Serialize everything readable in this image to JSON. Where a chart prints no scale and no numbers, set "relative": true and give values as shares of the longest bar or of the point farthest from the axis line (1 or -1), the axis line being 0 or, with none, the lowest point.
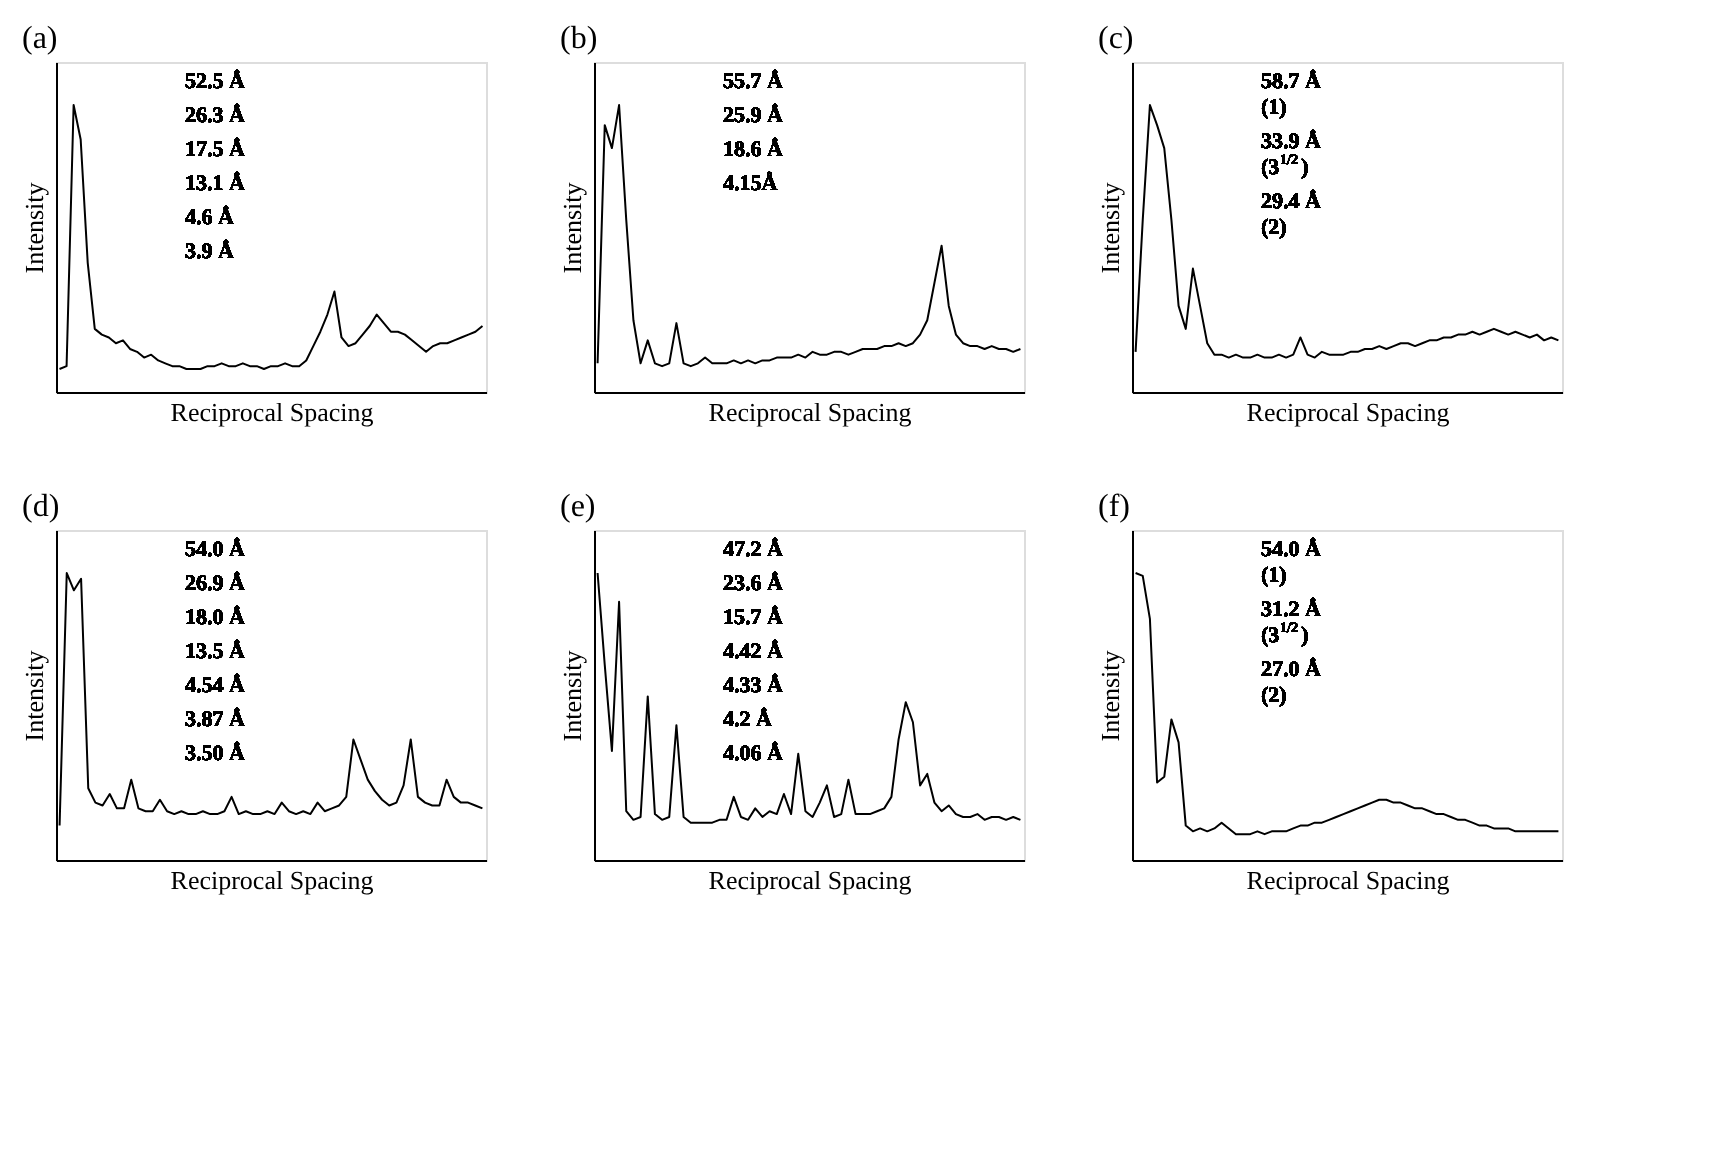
{
  "chart_data": [
    {
      "type": "line",
      "title": "(a)",
      "xlabel": "Reciprocal Spacing",
      "ylabel": "Intensity",
      "relative": true,
      "tick_labels": false,
      "color": "#000000",
      "categories": [
        null,
        null,
        null,
        null,
        null,
        null,
        null,
        null,
        null,
        null,
        null,
        null,
        null,
        null,
        null,
        null,
        null,
        null,
        null,
        null,
        null,
        null,
        null,
        null,
        null,
        null,
        null,
        null,
        null,
        null,
        null,
        null,
        null,
        null,
        null,
        null,
        null,
        null,
        null,
        null,
        null,
        null,
        null,
        null,
        null,
        null,
        null,
        null,
        null,
        null,
        null,
        null,
        null,
        null,
        null,
        null,
        null,
        null,
        null,
        null,
        null
      ],
      "values": [
        0.08,
        0.09,
        1.0,
        0.88,
        0.45,
        0.22,
        0.2,
        0.19,
        0.17,
        0.18,
        0.15,
        0.14,
        0.12,
        0.13,
        0.11,
        0.1,
        0.09,
        0.09,
        0.08,
        0.08,
        0.08,
        0.09,
        0.09,
        0.1,
        0.09,
        0.09,
        0.1,
        0.09,
        0.09,
        0.08,
        0.09,
        0.09,
        0.1,
        0.09,
        0.09,
        0.11,
        0.16,
        0.21,
        0.27,
        0.35,
        0.19,
        0.16,
        0.17,
        0.2,
        0.23,
        0.27,
        0.24,
        0.21,
        0.21,
        0.2,
        0.18,
        0.16,
        0.14,
        0.16,
        0.17,
        0.17,
        0.18,
        0.19,
        0.2,
        0.21,
        0.23
      ],
      "annotations": [
        "52.5 Å",
        "26.3 Å",
        "17.5 Å",
        "13.1 Å",
        "4.6 Å",
        "3.9 Å"
      ]
    },
    {
      "type": "line",
      "title": "(b)",
      "xlabel": "Reciprocal Spacing",
      "ylabel": "Intensity",
      "relative": true,
      "tick_labels": false,
      "color": "#000000",
      "categories": [
        null,
        null,
        null,
        null,
        null,
        null,
        null,
        null,
        null,
        null,
        null,
        null,
        null,
        null,
        null,
        null,
        null,
        null,
        null,
        null,
        null,
        null,
        null,
        null,
        null,
        null,
        null,
        null,
        null,
        null,
        null,
        null,
        null,
        null,
        null,
        null,
        null,
        null,
        null,
        null,
        null,
        null,
        null,
        null,
        null,
        null,
        null,
        null,
        null,
        null,
        null,
        null,
        null,
        null,
        null,
        null,
        null,
        null,
        null,
        null
      ],
      "values": [
        0.1,
        0.93,
        0.85,
        1.0,
        0.6,
        0.25,
        0.1,
        0.18,
        0.1,
        0.09,
        0.1,
        0.24,
        0.1,
        0.09,
        0.1,
        0.12,
        0.1,
        0.1,
        0.1,
        0.11,
        0.1,
        0.11,
        0.1,
        0.11,
        0.11,
        0.12,
        0.12,
        0.12,
        0.13,
        0.12,
        0.14,
        0.13,
        0.13,
        0.14,
        0.14,
        0.13,
        0.14,
        0.15,
        0.15,
        0.15,
        0.16,
        0.16,
        0.17,
        0.16,
        0.17,
        0.2,
        0.25,
        0.38,
        0.51,
        0.3,
        0.2,
        0.17,
        0.16,
        0.16,
        0.15,
        0.16,
        0.15,
        0.15,
        0.14,
        0.15
      ],
      "annotations": [
        "55.7 Å",
        "25.9 Å",
        "18.6 Å",
        "4.15Å"
      ]
    },
    {
      "type": "line",
      "title": "(c)",
      "xlabel": "Reciprocal Spacing",
      "ylabel": "Intensity",
      "relative": true,
      "tick_labels": false,
      "color": "#000000",
      "categories": [
        null,
        null,
        null,
        null,
        null,
        null,
        null,
        null,
        null,
        null,
        null,
        null,
        null,
        null,
        null,
        null,
        null,
        null,
        null,
        null,
        null,
        null,
        null,
        null,
        null,
        null,
        null,
        null,
        null,
        null,
        null,
        null,
        null,
        null,
        null,
        null,
        null,
        null,
        null,
        null,
        null,
        null,
        null,
        null,
        null,
        null,
        null,
        null,
        null,
        null,
        null,
        null,
        null,
        null,
        null,
        null,
        null,
        null,
        null,
        null
      ],
      "values": [
        0.14,
        0.6,
        1.0,
        0.93,
        0.85,
        0.6,
        0.3,
        0.22,
        0.43,
        0.3,
        0.17,
        0.13,
        0.13,
        0.12,
        0.13,
        0.12,
        0.12,
        0.13,
        0.12,
        0.12,
        0.13,
        0.12,
        0.13,
        0.19,
        0.13,
        0.12,
        0.14,
        0.13,
        0.13,
        0.13,
        0.14,
        0.14,
        0.15,
        0.15,
        0.16,
        0.15,
        0.16,
        0.17,
        0.17,
        0.16,
        0.17,
        0.18,
        0.18,
        0.19,
        0.19,
        0.2,
        0.2,
        0.21,
        0.2,
        0.21,
        0.22,
        0.21,
        0.2,
        0.21,
        0.2,
        0.19,
        0.2,
        0.18,
        0.19,
        0.18
      ],
      "annotations": [
        "58.7 Å\n(1)",
        "33.9 Å\n(3$^{1/2}$)",
        "29.4 Å\n(2)"
      ]
    },
    {
      "type": "line",
      "title": "(d)",
      "xlabel": "Reciprocal Spacing",
      "ylabel": "Intensity",
      "relative": true,
      "tick_labels": false,
      "color": "#000000",
      "categories": [
        null,
        null,
        null,
        null,
        null,
        null,
        null,
        null,
        null,
        null,
        null,
        null,
        null,
        null,
        null,
        null,
        null,
        null,
        null,
        null,
        null,
        null,
        null,
        null,
        null,
        null,
        null,
        null,
        null,
        null,
        null,
        null,
        null,
        null,
        null,
        null,
        null,
        null,
        null,
        null,
        null,
        null,
        null,
        null,
        null,
        null,
        null,
        null,
        null,
        null,
        null,
        null,
        null,
        null,
        null,
        null,
        null,
        null,
        null,
        null
      ],
      "values": [
        0.12,
        1.0,
        0.94,
        0.98,
        0.25,
        0.2,
        0.19,
        0.23,
        0.18,
        0.18,
        0.28,
        0.18,
        0.17,
        0.17,
        0.21,
        0.17,
        0.16,
        0.17,
        0.16,
        0.16,
        0.17,
        0.16,
        0.16,
        0.17,
        0.22,
        0.16,
        0.17,
        0.16,
        0.16,
        0.17,
        0.16,
        0.2,
        0.17,
        0.16,
        0.17,
        0.16,
        0.2,
        0.17,
        0.18,
        0.19,
        0.22,
        0.42,
        0.35,
        0.28,
        0.24,
        0.21,
        0.19,
        0.2,
        0.26,
        0.42,
        0.22,
        0.2,
        0.19,
        0.19,
        0.28,
        0.22,
        0.2,
        0.2,
        0.19,
        0.18
      ],
      "annotations": [
        "54.0 Å",
        "26.9 Å",
        "18.0 Å",
        "13.5 Å",
        "4.54 Å",
        "3.87 Å",
        "3.50 Å"
      ]
    },
    {
      "type": "line",
      "title": "(e)",
      "xlabel": "Reciprocal Spacing",
      "ylabel": "Intensity",
      "relative": true,
      "tick_labels": false,
      "color": "#000000",
      "categories": [
        null,
        null,
        null,
        null,
        null,
        null,
        null,
        null,
        null,
        null,
        null,
        null,
        null,
        null,
        null,
        null,
        null,
        null,
        null,
        null,
        null,
        null,
        null,
        null,
        null,
        null,
        null,
        null,
        null,
        null,
        null,
        null,
        null,
        null,
        null,
        null,
        null,
        null,
        null,
        null,
        null,
        null,
        null,
        null,
        null,
        null,
        null,
        null,
        null,
        null,
        null,
        null,
        null,
        null,
        null,
        null,
        null,
        null,
        null,
        null
      ],
      "values": [
        1.0,
        0.68,
        0.38,
        0.9,
        0.17,
        0.14,
        0.15,
        0.57,
        0.16,
        0.14,
        0.15,
        0.47,
        0.15,
        0.13,
        0.13,
        0.13,
        0.13,
        0.14,
        0.14,
        0.22,
        0.15,
        0.14,
        0.18,
        0.15,
        0.17,
        0.16,
        0.23,
        0.16,
        0.37,
        0.17,
        0.15,
        0.2,
        0.26,
        0.15,
        0.16,
        0.28,
        0.16,
        0.16,
        0.16,
        0.17,
        0.18,
        0.22,
        0.42,
        0.55,
        0.48,
        0.26,
        0.3,
        0.2,
        0.17,
        0.19,
        0.16,
        0.15,
        0.15,
        0.16,
        0.14,
        0.15,
        0.15,
        0.14,
        0.15,
        0.14
      ],
      "annotations": [
        "47.2 Å",
        "23.6 Å",
        "15.7 Å",
        "4.42 Å",
        "4.33 Å",
        "4.2 Å",
        "4.06 Å"
      ]
    },
    {
      "type": "line",
      "title": "(f)",
      "xlabel": "Reciprocal Spacing",
      "ylabel": "Intensity",
      "relative": true,
      "tick_labels": false,
      "color": "#000000",
      "categories": [
        null,
        null,
        null,
        null,
        null,
        null,
        null,
        null,
        null,
        null,
        null,
        null,
        null,
        null,
        null,
        null,
        null,
        null,
        null,
        null,
        null,
        null,
        null,
        null,
        null,
        null,
        null,
        null,
        null,
        null,
        null,
        null,
        null,
        null,
        null,
        null,
        null,
        null,
        null,
        null,
        null,
        null,
        null,
        null,
        null,
        null,
        null,
        null,
        null,
        null,
        null,
        null,
        null,
        null,
        null,
        null,
        null,
        null,
        null,
        null
      ],
      "values": [
        1.0,
        0.99,
        0.84,
        0.27,
        0.29,
        0.49,
        0.41,
        0.12,
        0.1,
        0.11,
        0.1,
        0.11,
        0.13,
        0.11,
        0.09,
        0.09,
        0.09,
        0.1,
        0.09,
        0.1,
        0.1,
        0.1,
        0.11,
        0.12,
        0.12,
        0.13,
        0.13,
        0.14,
        0.15,
        0.16,
        0.17,
        0.18,
        0.19,
        0.2,
        0.21,
        0.21,
        0.2,
        0.2,
        0.19,
        0.18,
        0.18,
        0.17,
        0.16,
        0.16,
        0.15,
        0.14,
        0.14,
        0.13,
        0.12,
        0.12,
        0.11,
        0.11,
        0.11,
        0.1,
        0.1,
        0.1,
        0.1,
        0.1,
        0.1,
        0.1
      ],
      "annotations": [
        "54.0 Å\n(1)",
        "31.2 Å\n(3$^{1/2}$)",
        "27.0 Å\n(2)"
      ]
    }
  ]
}
